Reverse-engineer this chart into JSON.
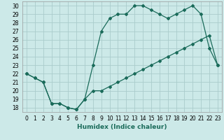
{
  "xlabel": "Humidex (Indice chaleur)",
  "xlim": [
    -0.5,
    23.5
  ],
  "ylim": [
    17.5,
    30.5
  ],
  "xticks": [
    0,
    1,
    2,
    3,
    4,
    5,
    6,
    7,
    8,
    9,
    10,
    11,
    12,
    13,
    14,
    15,
    16,
    17,
    18,
    19,
    20,
    21,
    22,
    23
  ],
  "yticks": [
    18,
    19,
    20,
    21,
    22,
    23,
    24,
    25,
    26,
    27,
    28,
    29,
    30
  ],
  "bg_color": "#cce9e8",
  "grid_color": "#aacccc",
  "line_color": "#1a6b5a",
  "upper_x": [
    0,
    1,
    2,
    3,
    4,
    5,
    6,
    7,
    8,
    9,
    10,
    11,
    12,
    13,
    14,
    15,
    16,
    17,
    18,
    19,
    20,
    21,
    22,
    23
  ],
  "upper_y": [
    22,
    21.5,
    21,
    18.5,
    18.5,
    18,
    17.8,
    19,
    23,
    27,
    28.5,
    29,
    29,
    30,
    30,
    29.5,
    29,
    28.5,
    29,
    29.5,
    30,
    29,
    25,
    23
  ],
  "lower_x": [
    0,
    1,
    2,
    3,
    4,
    5,
    6,
    7,
    8,
    9,
    10,
    11,
    12,
    13,
    14,
    15,
    16,
    17,
    18,
    19,
    20,
    21,
    22,
    23
  ],
  "lower_y": [
    22,
    21.5,
    21,
    18.5,
    18.5,
    18,
    17.8,
    19,
    20,
    20,
    20.5,
    21,
    21.5,
    22,
    22.5,
    23,
    23.5,
    24,
    24.5,
    25,
    25.5,
    26,
    26.5,
    23
  ],
  "xlabel_fontsize": 6.5,
  "tick_fontsize": 5.5,
  "marker_size": 2.0,
  "line_width": 0.9
}
